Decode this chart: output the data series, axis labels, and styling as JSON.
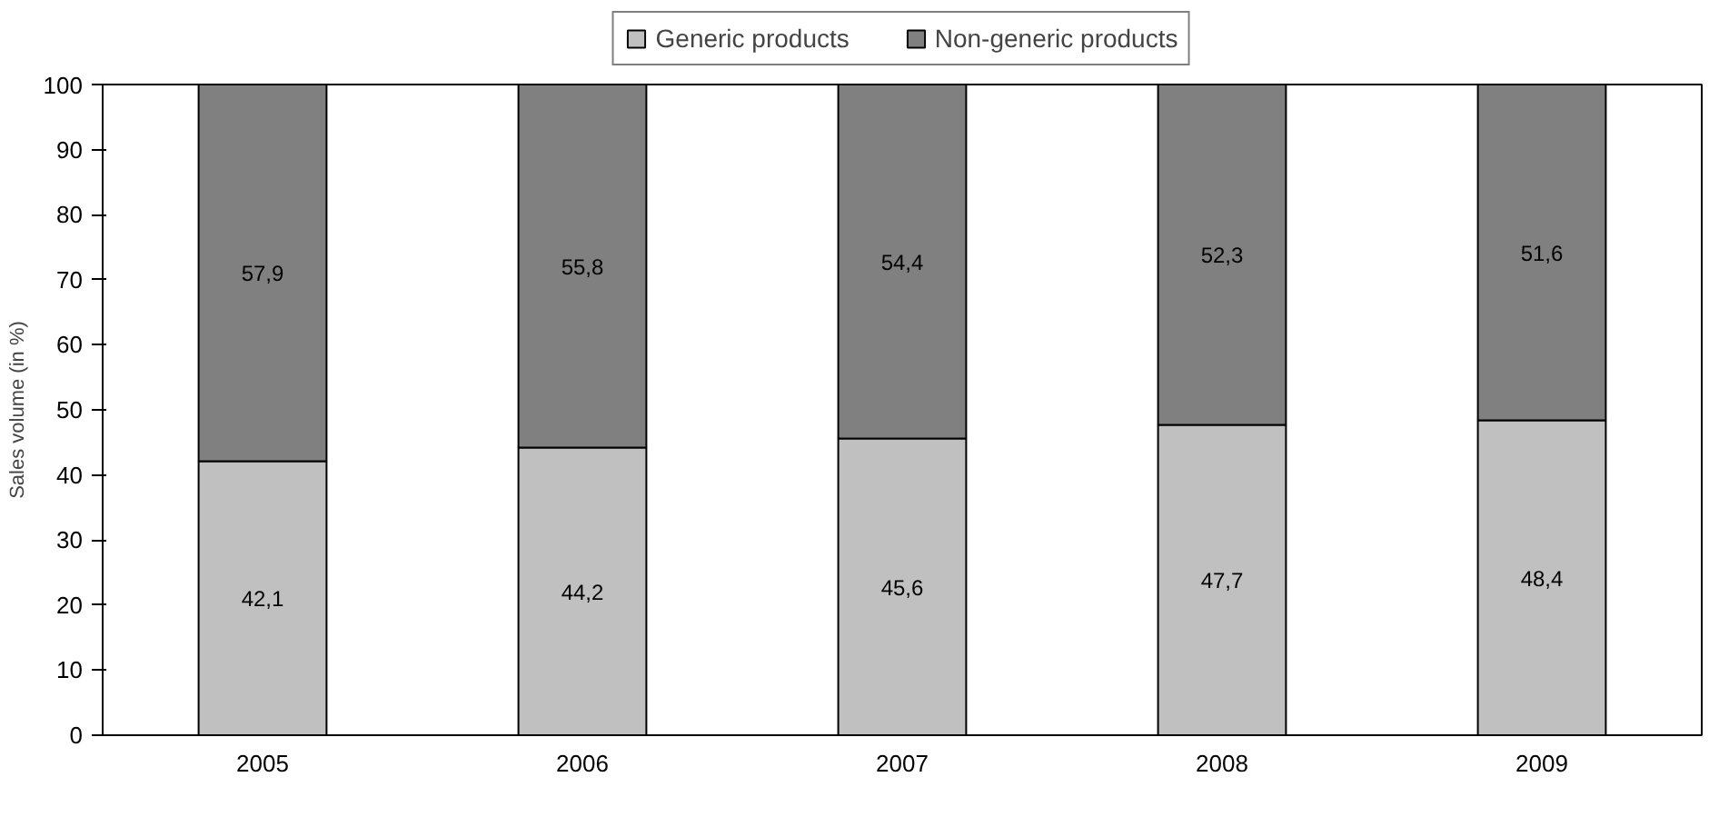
{
  "chart_data": {
    "type": "bar",
    "stacked": true,
    "ylabel": "Sales volume (in %)",
    "categories": [
      "2005",
      "2006",
      "2007",
      "2008",
      "2009"
    ],
    "series": [
      {
        "name": "Generic products",
        "color": "#c0c0c0",
        "values": [
          42.1,
          44.2,
          45.6,
          47.7,
          48.4
        ],
        "value_labels": [
          "42,1",
          "44,2",
          "45,6",
          "47,7",
          "48,4"
        ]
      },
      {
        "name": "Non-generic products",
        "color": "#808080",
        "values": [
          57.9,
          55.8,
          54.4,
          52.3,
          51.6
        ],
        "value_labels": [
          "57,9",
          "55,8",
          "54,4",
          "52,3",
          "51,6"
        ]
      }
    ],
    "ylim": [
      0,
      100
    ],
    "yticks": [
      0,
      10,
      20,
      30,
      40,
      50,
      60,
      70,
      80,
      90,
      100
    ],
    "grid": false,
    "legend": "top"
  }
}
